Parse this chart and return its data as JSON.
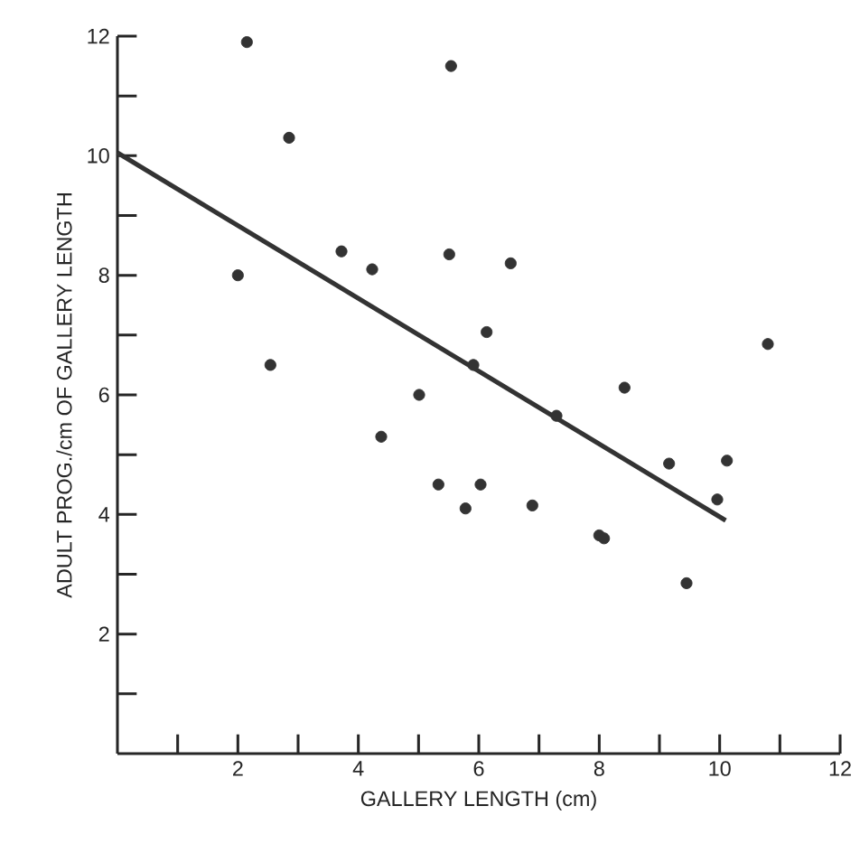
{
  "chart_data": {
    "type": "scatter",
    "xlabel": "GALLERY LENGTH (cm)",
    "ylabel": "ADULT PROG./cm OF GALLERY LENGTH",
    "xlim": [
      0,
      12
    ],
    "ylim": [
      0,
      12
    ],
    "xticks": [
      {
        "value": 1,
        "label": null
      },
      2,
      {
        "value": 3,
        "label": null
      },
      4,
      {
        "value": 5,
        "label": null
      },
      6,
      {
        "value": 7,
        "label": null
      },
      8,
      {
        "value": 9,
        "label": null
      },
      10,
      {
        "value": 11,
        "label": null
      },
      12
    ],
    "yticks": [
      {
        "value": 1,
        "label": null
      },
      2,
      {
        "value": 3,
        "label": null
      },
      4,
      {
        "value": 5,
        "label": null
      },
      6,
      {
        "value": 7,
        "label": null
      },
      8,
      {
        "value": 9,
        "label": null
      },
      10,
      {
        "value": 11,
        "label": null
      },
      12
    ],
    "series": [
      {
        "type": "scatter",
        "color": "#333333",
        "marker": "circle",
        "x": [
          2.0,
          2.15,
          2.54,
          2.85,
          3.72,
          4.23,
          5.51,
          5.54,
          6.13,
          5.91,
          5.01,
          6.53,
          10.8,
          8.42,
          7.29,
          4.38,
          5.33,
          6.03,
          5.78,
          6.89,
          8.0,
          8.08,
          9.45,
          9.16,
          10.12,
          9.96
        ],
        "values": [
          8.0,
          11.9,
          6.5,
          10.3,
          8.4,
          8.1,
          8.35,
          11.5,
          7.05,
          6.5,
          6.0,
          8.2,
          6.85,
          6.12,
          5.65,
          5.3,
          4.5,
          4.5,
          4.1,
          4.15,
          3.65,
          3.6,
          2.85,
          4.85,
          4.9,
          4.25
        ]
      },
      {
        "type": "line",
        "color": "#333333",
        "marker": "none",
        "line_style": "solid",
        "x": [
          0,
          10.1
        ],
        "values": [
          10.05,
          3.9
        ]
      }
    ]
  }
}
